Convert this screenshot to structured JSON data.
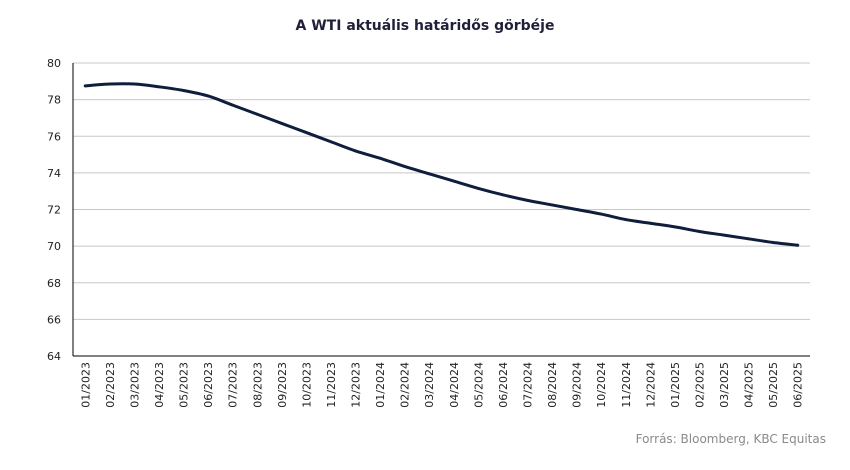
{
  "source_label": "Forrás: Bloomberg, KBC Equitas",
  "colors": {
    "line": "#0f1e3d",
    "grid": "#c8c8c8",
    "axis": "#000000"
  },
  "chart_data": {
    "type": "line",
    "title": "A WTI aktuális határidős görbéje",
    "xlabel": "",
    "ylabel": "",
    "ylim": [
      64,
      80
    ],
    "yticks": [
      64,
      66,
      68,
      70,
      72,
      74,
      76,
      78,
      80
    ],
    "grid": true,
    "categories": [
      "01/2023",
      "02/2023",
      "03/2023",
      "04/2023",
      "05/2023",
      "06/2023",
      "07/2023",
      "08/2023",
      "09/2023",
      "10/2023",
      "11/2023",
      "12/2023",
      "01/2024",
      "02/2024",
      "03/2024",
      "04/2024",
      "05/2024",
      "06/2024",
      "07/2024",
      "08/2024",
      "09/2024",
      "10/2024",
      "11/2024",
      "12/2024",
      "01/2025",
      "02/2025",
      "03/2025",
      "04/2025",
      "05/2025",
      "06/2025"
    ],
    "series": [
      {
        "values": [
          78.75,
          78.85,
          78.85,
          78.7,
          78.5,
          78.2,
          77.7,
          77.2,
          76.7,
          76.2,
          75.7,
          75.2,
          74.8,
          74.35,
          73.95,
          73.55,
          73.15,
          72.8,
          72.5,
          72.25,
          72.0,
          71.75,
          71.45,
          71.25,
          71.05,
          70.8,
          70.6,
          70.4,
          70.2,
          70.05
        ]
      }
    ]
  }
}
